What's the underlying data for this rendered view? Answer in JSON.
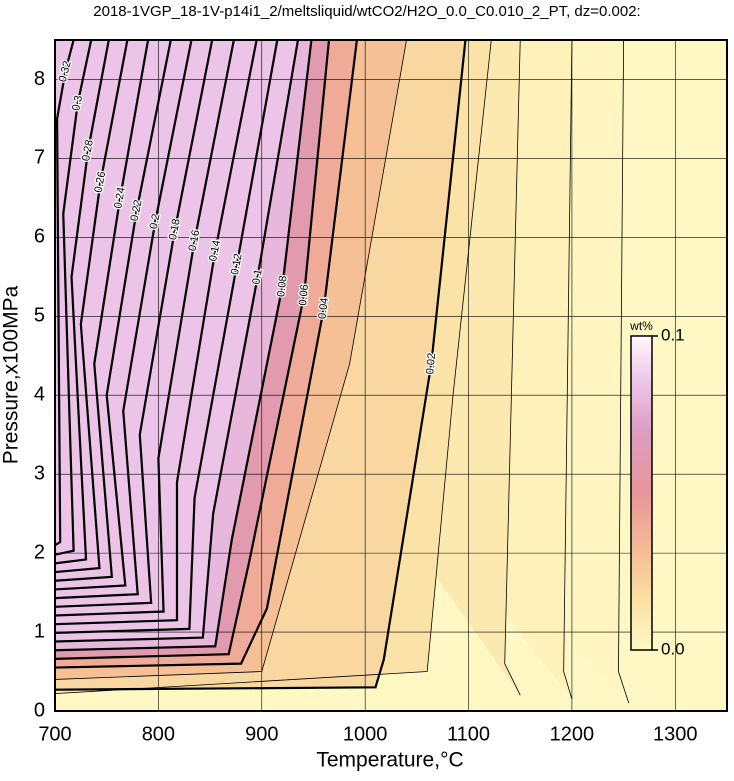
{
  "chart_data": {
    "type": "contour",
    "title": "2018-1VGP_18-1V-p14i1_2/meltsliquid/wtCO2/H2O_0.0_C0.010_2_PT, dz=0.002:",
    "x_label": "Temperature,°C",
    "y_label": "Pressure,x100MPa",
    "xlim": [
      700,
      1350
    ],
    "ylim": [
      0,
      8.5
    ],
    "xticks": [
      700,
      800,
      900,
      1000,
      1100,
      1200,
      1300
    ],
    "yticks": [
      0,
      1,
      2,
      3,
      4,
      5,
      6,
      7,
      8
    ],
    "grid": true,
    "colormap": [
      [
        0,
        "#fff8c4"
      ],
      [
        0.015,
        "#fbe2a6"
      ],
      [
        0.03,
        "#f6c096"
      ],
      [
        0.05,
        "#e8959a"
      ],
      [
        0.07,
        "#dc9ec4"
      ],
      [
        0.085,
        "#ecc4e8"
      ],
      [
        0.1,
        "#fff6fc"
      ]
    ],
    "colorbar": {
      "label": "wt%",
      "lim": [
        0,
        0.1
      ],
      "ticks": [
        {
          "value": 0,
          "label": "0.0"
        },
        0.1
      ]
    },
    "contours": [
      {
        "level": 0.002,
        "style": "minor",
        "T": [
          1250,
          1245,
          1255
        ],
        "P": [
          8.5,
          0.5,
          0.1
        ]
      },
      {
        "level": 0.005,
        "style": "minor",
        "T": [
          1200,
          1192,
          1200
        ],
        "P": [
          8.5,
          0.5,
          0.15
        ]
      },
      {
        "level": 0.01,
        "style": "minor",
        "T": [
          1150,
          1135,
          1150
        ],
        "P": [
          8.5,
          0.6,
          0.2
        ]
      },
      {
        "level": 0.015,
        "style": "minor",
        "T": [
          1122,
          1085,
          1060,
          700
        ],
        "P": [
          8.5,
          4.0,
          0.5,
          0.22
        ]
      },
      {
        "level": 0.02,
        "style": "major",
        "T": [
          1097,
          1064,
          1018,
          1010,
          700
        ],
        "P": [
          8.5,
          4.4,
          0.65,
          0.3,
          0.27
        ]
      },
      {
        "level": 0.03,
        "style": "minor",
        "T": [
          1040,
          985,
          900,
          700
        ],
        "P": [
          8.5,
          4.4,
          0.5,
          0.4
        ]
      },
      {
        "level": 0.04,
        "style": "major",
        "T": [
          992,
          960,
          905,
          880,
          700
        ],
        "P": [
          8.5,
          5.1,
          1.3,
          0.6,
          0.55
        ]
      },
      {
        "level": 0.06,
        "style": "major",
        "T": [
          965,
          941,
          888,
          868,
          700
        ],
        "P": [
          8.5,
          5.27,
          1.9,
          0.72,
          0.66
        ]
      },
      {
        "level": 0.08,
        "style": "major",
        "T": [
          948,
          920,
          871,
          855,
          700
        ],
        "P": [
          8.5,
          5.38,
          2.17,
          0.82,
          0.77
        ]
      },
      {
        "level": 0.1,
        "style": "major",
        "T": [
          935,
          896,
          853,
          843,
          700
        ],
        "P": [
          8.5,
          5.5,
          2.5,
          0.93,
          0.88
        ]
      },
      {
        "level": 0.12,
        "style": "major",
        "T": [
          915,
          876,
          835,
          830,
          700
        ],
        "P": [
          8.5,
          5.66,
          2.7,
          1.04,
          0.99
        ]
      },
      {
        "level": 0.14,
        "style": "major",
        "T": [
          895,
          855,
          818,
          818,
          700
        ],
        "P": [
          8.5,
          5.83,
          2.9,
          1.15,
          1.1
        ]
      },
      {
        "level": 0.16,
        "style": "major",
        "T": [
          873,
          835,
          800,
          805,
          700
        ],
        "P": [
          8.5,
          5.96,
          3.2,
          1.26,
          1.21
        ]
      },
      {
        "level": 0.18,
        "style": "major",
        "T": [
          852,
          816,
          782,
          793,
          700
        ],
        "P": [
          8.5,
          6.1,
          3.5,
          1.37,
          1.32
        ]
      },
      {
        "level": 0.2,
        "style": "major",
        "T": [
          832,
          797,
          766,
          780,
          700
        ],
        "P": [
          8.5,
          6.2,
          3.8,
          1.48,
          1.43
        ]
      },
      {
        "level": 0.22,
        "style": "major",
        "T": [
          812,
          779,
          750,
          768,
          700
        ],
        "P": [
          8.5,
          6.34,
          4.0,
          1.59,
          1.54
        ]
      },
      {
        "level": 0.24,
        "style": "major",
        "T": [
          790,
          763,
          738,
          755,
          700
        ],
        "P": [
          8.5,
          6.5,
          4.4,
          1.7,
          1.65
        ]
      },
      {
        "level": 0.26,
        "style": "major",
        "T": [
          770,
          744,
          725,
          743,
          700
        ],
        "P": [
          8.5,
          6.7,
          4.9,
          1.81,
          1.76
        ]
      },
      {
        "level": 0.28,
        "style": "major",
        "T": [
          752,
          732,
          716,
          730,
          700
        ],
        "P": [
          8.5,
          7.1,
          5.5,
          1.92,
          1.87
        ]
      },
      {
        "level": 0.3,
        "style": "major",
        "T": [
          735,
          722,
          708,
          718,
          700
        ],
        "P": [
          8.5,
          7.7,
          6.3,
          2.03,
          1.98
        ]
      },
      {
        "level": 0.32,
        "style": "major",
        "T": [
          718,
          710,
          702,
          705,
          700
        ],
        "P": [
          8.5,
          8.1,
          7.5,
          2.14,
          2.1
        ]
      }
    ]
  }
}
